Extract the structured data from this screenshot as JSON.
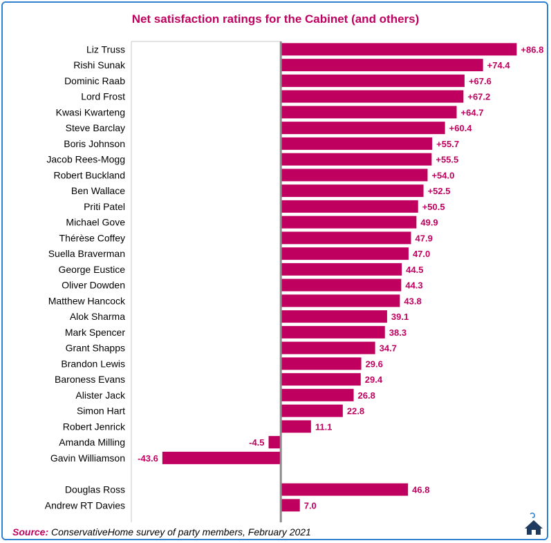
{
  "chart_data": {
    "type": "bar",
    "orientation": "horizontal",
    "title": "Net satisfaction ratings for the Cabinet (and others)",
    "bar_color": "#c0005f",
    "xlim": [
      -55,
      90
    ],
    "categories": [
      "Liz Truss",
      "Rishi Sunak",
      "Dominic Raab",
      "Lord Frost",
      "Kwasi Kwarteng",
      "Steve Barclay",
      "Boris Johnson",
      "Jacob Rees-Mogg",
      "Robert Buckland",
      "Ben Wallace",
      "Priti Patel",
      "Michael Gove",
      "Thérèse Coffey",
      "Suella Braverman",
      "George Eustice",
      "Oliver Dowden",
      "Matthew Hancock",
      "Alok Sharma",
      "Mark Spencer",
      "Grant Shapps",
      "Brandon Lewis",
      "Baroness Evans",
      "Alister Jack",
      "Simon Hart",
      "Robert Jenrick",
      "Amanda Milling",
      "Gavin Williamson",
      "Douglas Ross",
      "Andrew RT Davies"
    ],
    "values": [
      86.8,
      74.4,
      67.6,
      67.2,
      64.7,
      60.4,
      55.7,
      55.5,
      54.0,
      52.5,
      50.5,
      49.9,
      47.9,
      47.0,
      44.5,
      44.3,
      43.8,
      39.1,
      38.3,
      34.7,
      29.6,
      29.4,
      26.8,
      22.8,
      11.1,
      -4.5,
      -43.6,
      46.8,
      7.0
    ],
    "labels": [
      "+86.8",
      "+74.4",
      "+67.6",
      "+67.2",
      "+64.7",
      "+60.4",
      "+55.7",
      "+55.5",
      "+54.0",
      "+52.5",
      "+50.5",
      "49.9",
      "47.9",
      "47.0",
      "44.5",
      "44.3",
      "43.8",
      "39.1",
      "38.3",
      "34.7",
      "29.6",
      "29.4",
      "26.8",
      "22.8",
      "11.1",
      "-4.5",
      "-43.6",
      "46.8",
      "7.0"
    ],
    "groups": [
      {
        "start": 0,
        "count": 27
      },
      {
        "start": 27,
        "count": 2
      }
    ],
    "grid": false,
    "legend": "none"
  },
  "source": {
    "prefix": "Source:",
    "text": "ConservativeHome survey of party members, February 2021"
  },
  "logo": {
    "icon": "house-logo-icon",
    "color": "#1f3a5f",
    "accent": "#2f80d0"
  }
}
